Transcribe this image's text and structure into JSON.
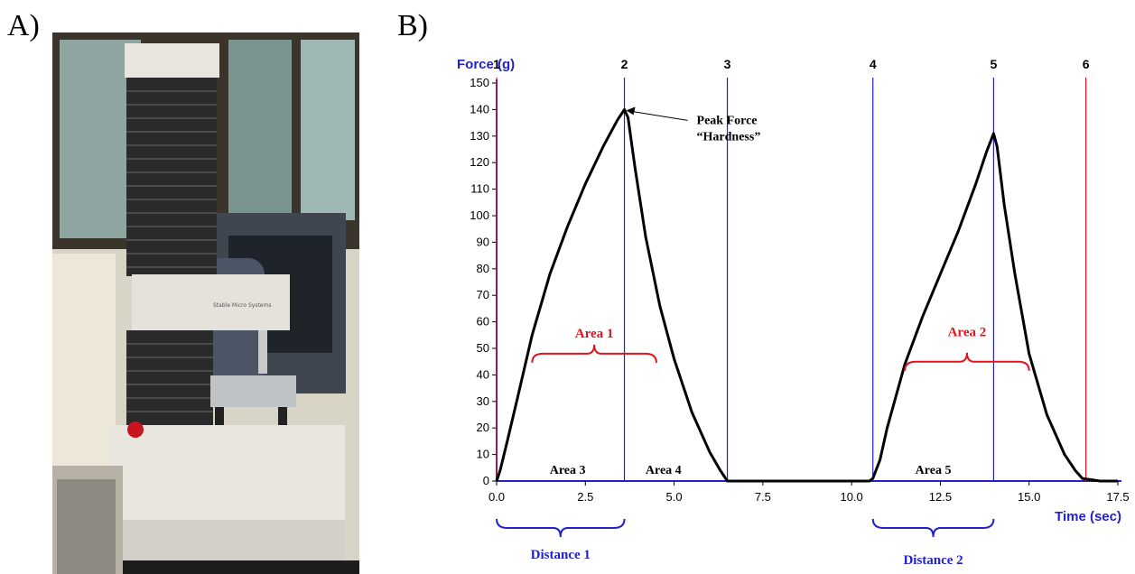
{
  "panels": {
    "a_label": "A)",
    "b_label": "B)"
  },
  "photo": {
    "device_text": "Stable Micro Systems",
    "colors": {
      "wall": "#d6d2c4",
      "device_body": "#e8e6df",
      "bellows": "#2b2b2b",
      "window": "#6f8a8f",
      "desk": "#1c1c1c"
    }
  },
  "chart_data": {
    "type": "line",
    "ylabel": "Force (g)",
    "xlabel": "Time (sec)",
    "xlim": [
      0,
      17.5
    ],
    "ylim": [
      0,
      150
    ],
    "x_ticks": [
      "0.0",
      "2.5",
      "5.0",
      "7.5",
      "10.0",
      "12.5",
      "15.0",
      "17.5"
    ],
    "y_ticks": [
      "0",
      "10",
      "20",
      "30",
      "40",
      "50",
      "60",
      "70",
      "80",
      "90",
      "100",
      "110",
      "120",
      "130",
      "140",
      "150"
    ],
    "series": [
      {
        "color": "#000000",
        "x": [
          0,
          0.1,
          0.3,
          0.6,
          1.0,
          1.5,
          2.0,
          2.5,
          3.0,
          3.4,
          3.6,
          3.7,
          3.9,
          4.2,
          4.6,
          5.0,
          5.5,
          6.0,
          6.3,
          6.5,
          7.0,
          8.0,
          9.0,
          10.0,
          10.5,
          10.6,
          10.8,
          11.0,
          11.5,
          12.0,
          12.5,
          13.0,
          13.5,
          13.8,
          14.0,
          14.1,
          14.3,
          14.6,
          15.0,
          15.5,
          16.0,
          16.3,
          16.5,
          17.0,
          17.5
        ],
        "y": [
          0,
          4,
          15,
          32,
          55,
          78,
          96,
          112,
          126,
          136,
          140,
          137,
          118,
          92,
          66,
          46,
          26,
          11,
          4,
          0,
          0,
          0,
          0,
          0,
          0,
          1,
          8,
          20,
          44,
          62,
          78,
          94,
          112,
          124,
          131,
          126,
          104,
          78,
          48,
          25,
          10,
          4,
          1,
          0,
          0
        ]
      }
    ],
    "markers": [
      {
        "label": "1",
        "x": 0.0,
        "color": "#e0141c"
      },
      {
        "label": "2",
        "x": 3.6,
        "color": "#2222cc"
      },
      {
        "label": "3",
        "x": 6.5,
        "color": "#2222cc"
      },
      {
        "label": "4",
        "x": 10.6,
        "color": "#2222cc"
      },
      {
        "label": "5",
        "x": 14.0,
        "color": "#2222cc"
      },
      {
        "label": "6",
        "x": 16.6,
        "color": "#e0141c"
      }
    ],
    "annotations": {
      "peak_line1": "Peak Force",
      "peak_line2": "“Hardness”",
      "peak_point": {
        "x": 3.6,
        "y": 140
      },
      "area1": {
        "text": "Area 1",
        "x1": 1.0,
        "x2": 4.5,
        "y": 48
      },
      "area2": {
        "text": "Area 2",
        "x1": 11.5,
        "x2": 15.0,
        "y": 45
      },
      "area3": {
        "text": "Area 3",
        "x": 2.0
      },
      "area4": {
        "text": "Area 4",
        "x": 4.7
      },
      "area5": {
        "text": "Area 5",
        "x": 12.3
      },
      "distance1": {
        "text": "Distance 1",
        "x1": 0.0,
        "x2": 3.6
      },
      "distance2": {
        "text": "Distance 2",
        "x1": 10.6,
        "x2": 14.0
      }
    },
    "colors": {
      "axis": "#2222cc",
      "line": "#000000",
      "red": "#e0141c",
      "blue": "#2222cc"
    }
  }
}
